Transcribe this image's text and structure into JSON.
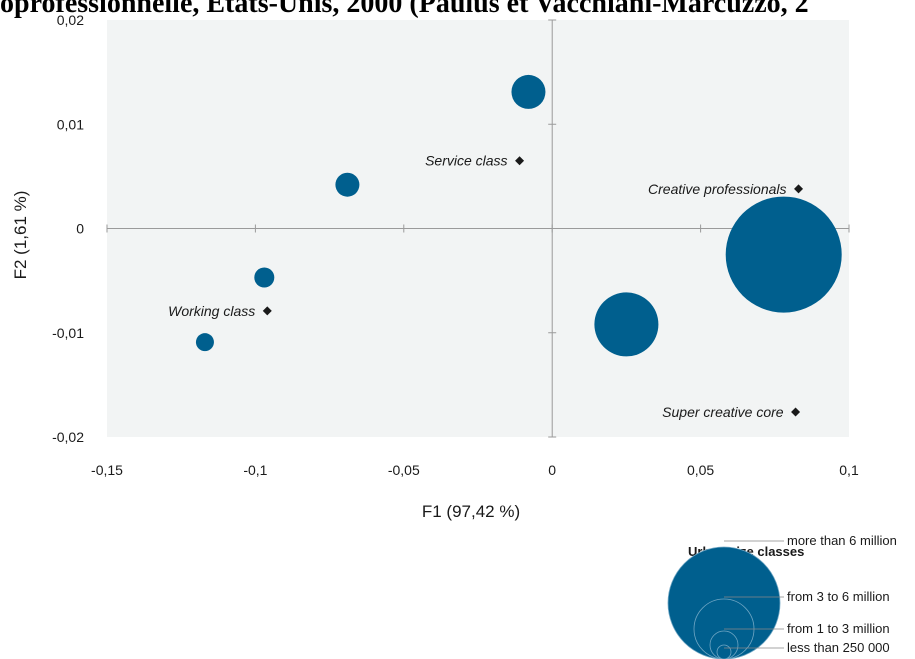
{
  "title": "oprofessionnelle, États-Unis, 2000 (Paulus et Vacchiani-Marcuzzo, 2",
  "chart_data": {
    "type": "scatter",
    "xlabel": "F1 (97,42 %)",
    "ylabel": "F2 (1,61 %)",
    "xlim": [
      -0.15,
      0.1
    ],
    "ylim": [
      -0.02,
      0.02
    ],
    "x_ticks": [
      "-0,15",
      "-0,1",
      "-0,05",
      "0",
      "0,05",
      "0,1"
    ],
    "y_ticks": [
      "-0,02",
      "-0,01",
      "0",
      "0,01",
      "0,02"
    ],
    "x_tick_values": [
      -0.15,
      -0.1,
      -0.05,
      0,
      0.05,
      0.1
    ],
    "y_tick_values": [
      -0.02,
      -0.01,
      0,
      0.01,
      0.02
    ],
    "background_color": "#f2f4f4",
    "bubble_color": "#005f8e",
    "marker_color": "#1a1a1a",
    "bubbles": [
      {
        "x": -0.117,
        "y": -0.0109,
        "size_rank": 1
      },
      {
        "x": -0.097,
        "y": -0.0047,
        "size_rank": 2
      },
      {
        "x": -0.069,
        "y": 0.0042,
        "size_rank": 3
      },
      {
        "x": -0.008,
        "y": 0.0131,
        "size_rank": 4
      },
      {
        "x": 0.025,
        "y": -0.0092,
        "size_rank": 5
      },
      {
        "x": 0.078,
        "y": -0.0025,
        "size_rank": 6
      }
    ],
    "categories": [
      {
        "label": "Service class",
        "x": -0.011,
        "y": 0.0065
      },
      {
        "label": "Creative professionals",
        "x": 0.083,
        "y": 0.0038
      },
      {
        "label": "Working class",
        "x": -0.096,
        "y": -0.0079
      },
      {
        "label": "Super creative core",
        "x": 0.082,
        "y": -0.0176
      }
    ],
    "legend": {
      "title": "Urban size classes",
      "items": [
        "more than 6 million",
        "from 3 to 6 million",
        "from 1 to 3 million",
        "less than 250 000"
      ],
      "placement": "bottom-right"
    }
  }
}
